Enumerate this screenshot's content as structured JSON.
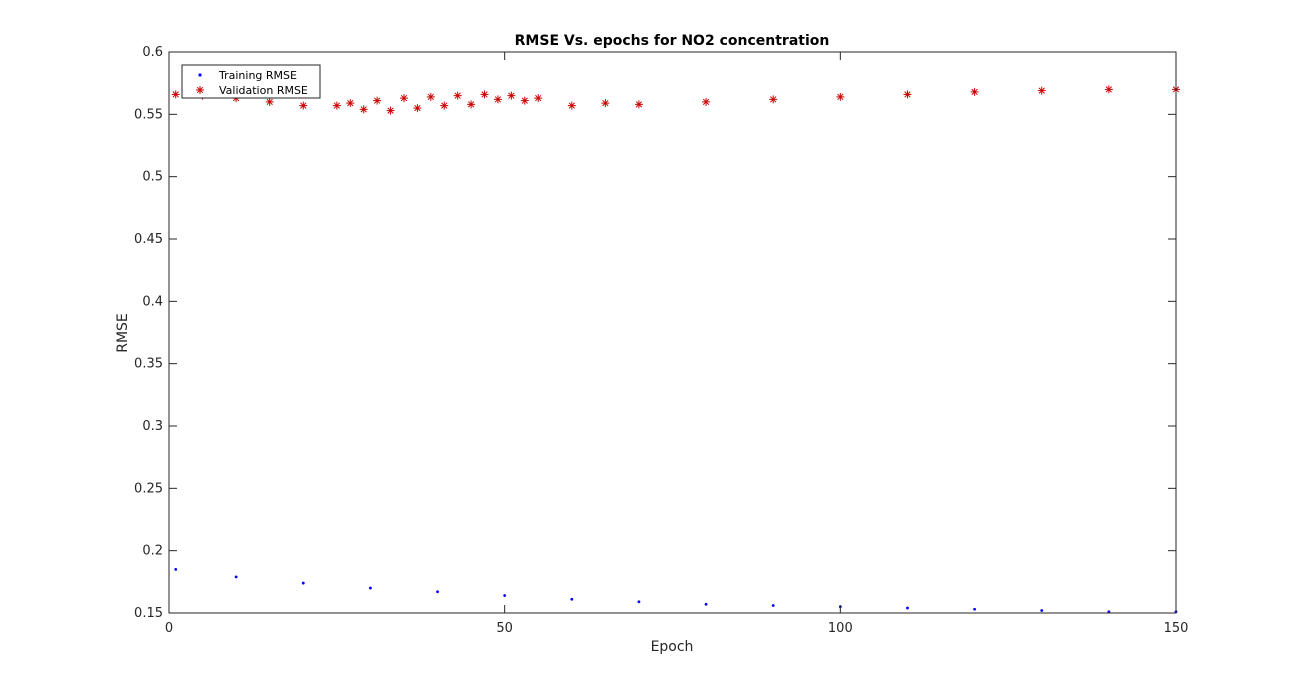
{
  "chart_data": {
    "type": "scatter",
    "title": "RMSE Vs. epochs for NO2 concentration",
    "xlabel": "Epoch",
    "ylabel": "RMSE",
    "xlim": [
      0,
      150
    ],
    "ylim": [
      0.15,
      0.6
    ],
    "xticks": [
      "0",
      "50",
      "100",
      "150"
    ],
    "yticks": [
      "0.15",
      "0.2",
      "0.25",
      "0.3",
      "0.35",
      "0.4",
      "0.45",
      "0.5",
      "0.55",
      "0.6"
    ],
    "grid": false,
    "legend_position": "top-left",
    "series": [
      {
        "name": "Training RMSE",
        "marker": "dot",
        "color": "#0000ff",
        "x": [
          1,
          10,
          20,
          30,
          40,
          50,
          60,
          70,
          80,
          90,
          100,
          110,
          120,
          130,
          140,
          150
        ],
        "y": [
          0.185,
          0.179,
          0.174,
          0.17,
          0.167,
          0.164,
          0.161,
          0.159,
          0.157,
          0.156,
          0.155,
          0.154,
          0.153,
          0.152,
          0.151,
          0.151
        ]
      },
      {
        "name": "Validation RMSE",
        "marker": "asterisk",
        "color": "#cc0000",
        "x": [
          1,
          5,
          10,
          15,
          20,
          25,
          27,
          29,
          31,
          33,
          35,
          37,
          39,
          41,
          43,
          45,
          47,
          49,
          51,
          53,
          55,
          60,
          65,
          70,
          80,
          90,
          100,
          110,
          120,
          130,
          140,
          150
        ],
        "y": [
          0.566,
          0.565,
          0.563,
          0.56,
          0.557,
          0.557,
          0.559,
          0.554,
          0.561,
          0.553,
          0.563,
          0.555,
          0.564,
          0.557,
          0.565,
          0.558,
          0.566,
          0.562,
          0.565,
          0.561,
          0.563,
          0.557,
          0.559,
          0.558,
          0.56,
          0.562,
          0.564,
          0.566,
          0.568,
          0.569,
          0.57,
          0.57
        ]
      }
    ]
  }
}
